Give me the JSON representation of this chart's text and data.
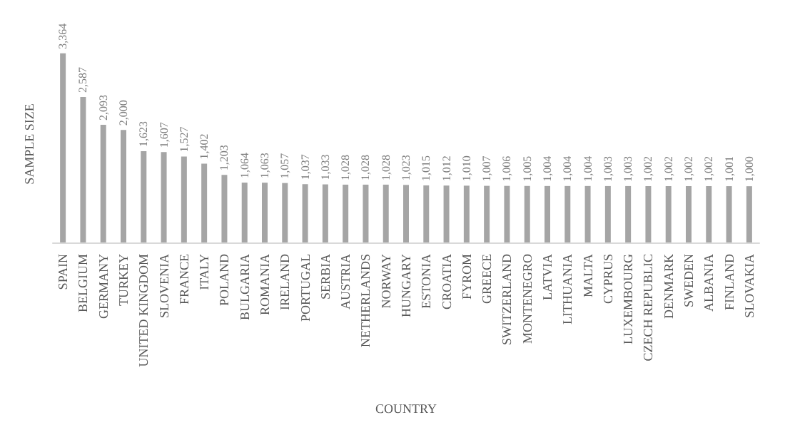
{
  "chart_data": {
    "type": "bar",
    "xlabel": "COUNTRY",
    "ylabel": "SAMPLE SIZE",
    "color": "#a5a5a5",
    "categories": [
      "SPAIN",
      "BELGIUM",
      "GERMANY",
      "TURKEY",
      "UNITED KINGDOM",
      "SLOVENIA",
      "FRANCE",
      "ITALY",
      "POLAND",
      "BULGARIA",
      "ROMANIA",
      "IRELAND",
      "PORTUGAL",
      "SERBIA",
      "AUSTRIA",
      "NETHERLANDS",
      "NORWAY",
      "HUNGARY",
      "ESTONIA",
      "CROATIA",
      "FYROM",
      "GREECE",
      "SWITZERLAND",
      "MONTENEGRO",
      "LATVIA",
      "LITHUANIA",
      "MALTA",
      "CYPRUS",
      "LUXEMBOURG",
      "CZECH REPUBLIC",
      "DENMARK",
      "SWEDEN",
      "ALBANIA",
      "FINLAND",
      "SLOVAKIA"
    ],
    "values": [
      3364,
      2587,
      2093,
      2000,
      1623,
      1607,
      1527,
      1402,
      1203,
      1064,
      1063,
      1057,
      1037,
      1033,
      1028,
      1028,
      1028,
      1023,
      1015,
      1012,
      1010,
      1007,
      1006,
      1005,
      1004,
      1004,
      1004,
      1003,
      1003,
      1002,
      1002,
      1002,
      1002,
      1001,
      1000
    ],
    "value_labels": [
      "3,364",
      "2,587",
      "2,093",
      "2,000",
      "1,623",
      "1,607",
      "1,527",
      "1,402",
      "1,203",
      "1,064",
      "1,063",
      "1,057",
      "1,037",
      "1,033",
      "1,028",
      "1,028",
      "1,028",
      "1,023",
      "1,015",
      "1,012",
      "1,010",
      "1,007",
      "1,006",
      "1,005",
      "1,004",
      "1,004",
      "1,004",
      "1,003",
      "1,003",
      "1,002",
      "1,002",
      "1,002",
      "1,002",
      "1,001",
      "1,000"
    ],
    "grid": false
  }
}
